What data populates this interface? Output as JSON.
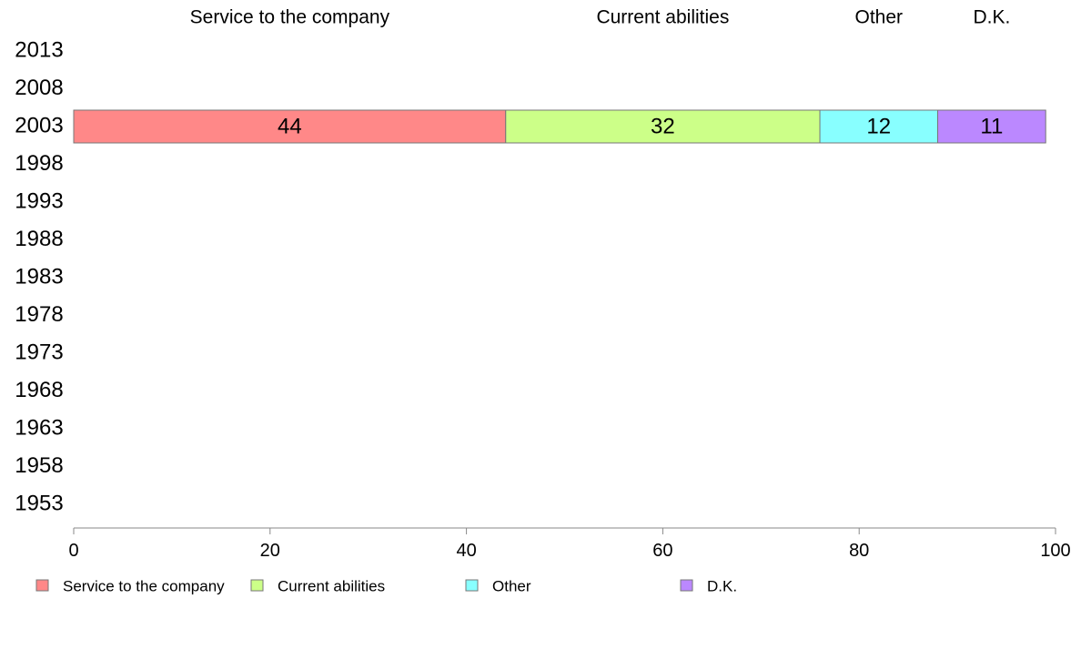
{
  "chart_data": {
    "type": "bar",
    "orientation": "horizontal",
    "stacked": true,
    "categories": [
      "2013",
      "2008",
      "2003",
      "1998",
      "1993",
      "1988",
      "1983",
      "1978",
      "1973",
      "1968",
      "1963",
      "1958",
      "1953"
    ],
    "series": [
      {
        "name": "Service to the company",
        "color": "#ff8888",
        "values": [
          null,
          null,
          44,
          null,
          null,
          null,
          null,
          null,
          null,
          null,
          null,
          null,
          null
        ]
      },
      {
        "name": "Current abilities",
        "color": "#ccff88",
        "values": [
          null,
          null,
          32,
          null,
          null,
          null,
          null,
          null,
          null,
          null,
          null,
          null,
          null
        ]
      },
      {
        "name": "Other",
        "color": "#88ffff",
        "values": [
          null,
          null,
          12,
          null,
          null,
          null,
          null,
          null,
          null,
          null,
          null,
          null,
          null
        ]
      },
      {
        "name": "D.K.",
        "color": "#bb88ff",
        "values": [
          null,
          null,
          11,
          null,
          null,
          null,
          null,
          null,
          null,
          null,
          null,
          null,
          null
        ]
      }
    ],
    "data_labels": true,
    "top_labels": [
      "Service to the company",
      "Current abilities",
      "Other",
      "D.K."
    ],
    "xlim": [
      0,
      100
    ],
    "xticks": [
      0,
      20,
      40,
      60,
      80,
      100
    ],
    "grid": false,
    "legend": "bottom"
  }
}
